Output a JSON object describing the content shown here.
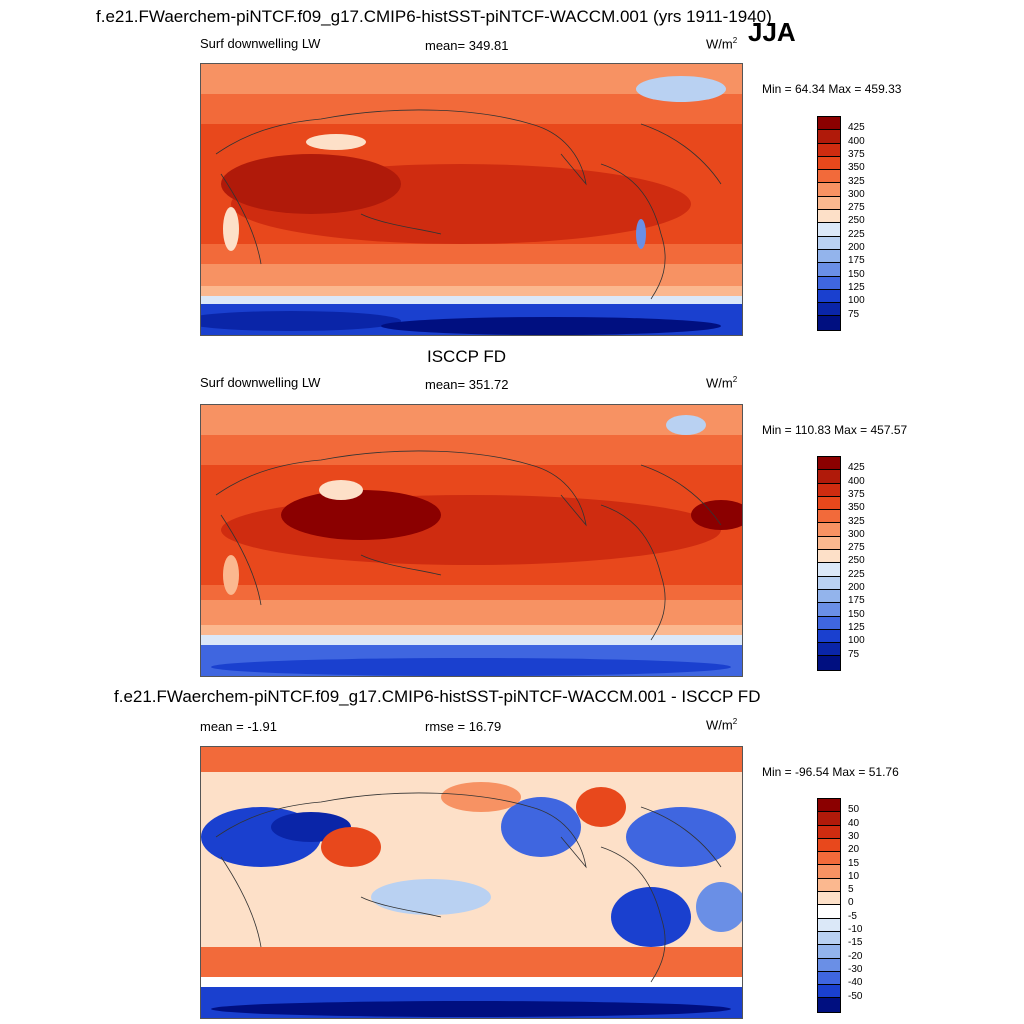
{
  "season": "JJA",
  "panels": [
    {
      "title": "f.e21.FWaerchem-piNTCF.f09_g17.CMIP6-histSST-piNTCF-WACCM.001 (yrs 1911-1940)",
      "left_label": "Surf downwelling LW",
      "center_label": "mean= 349.81",
      "units": "W/m",
      "units_sup": "2",
      "minmax": "Min =  64.34 Max = 459.33",
      "scheme": "abs"
    },
    {
      "title": "ISCCP FD",
      "left_label": "Surf downwelling LW",
      "center_label": "mean= 351.72",
      "units": "W/m",
      "units_sup": "2",
      "minmax": "Min = 110.83 Max = 457.57",
      "scheme": "abs"
    },
    {
      "title": "f.e21.FWaerchem-piNTCF.f09_g17.CMIP6-histSST-piNTCF-WACCM.001 - ISCCP FD",
      "left_label": "mean =  -1.91",
      "center_label": "rmse =  16.79",
      "units": "W/m",
      "units_sup": "2",
      "minmax": "Min = -96.54 Max =  51.76",
      "scheme": "diff"
    }
  ],
  "colorbars": {
    "abs": {
      "labels": [
        "425",
        "400",
        "375",
        "350",
        "325",
        "300",
        "275",
        "250",
        "225",
        "200",
        "175",
        "150",
        "125",
        "100",
        "75"
      ],
      "colors": [
        "#8b0000",
        "#b01a0a",
        "#cf2c10",
        "#e8481c",
        "#f26a3a",
        "#f79263",
        "#fbb88f",
        "#fde0c8",
        "#dbe8f8",
        "#b9d1f2",
        "#93b4ec",
        "#6a8fe6",
        "#3f66e0",
        "#1a40cf",
        "#0a25a8",
        "#000f80"
      ]
    },
    "diff": {
      "labels": [
        "50",
        "40",
        "30",
        "20",
        "15",
        "10",
        "5",
        "0",
        "-5",
        "-10",
        "-15",
        "-20",
        "-30",
        "-40",
        "-50"
      ],
      "colors": [
        "#8b0000",
        "#b01a0a",
        "#cf2c10",
        "#e8481c",
        "#f26a3a",
        "#f79263",
        "#fbb88f",
        "#fde0c8",
        "#ffffff",
        "#dbe8f8",
        "#b9d1f2",
        "#93b4ec",
        "#6a8fe6",
        "#3f66e0",
        "#1a40cf",
        "#000f80"
      ]
    }
  }
}
